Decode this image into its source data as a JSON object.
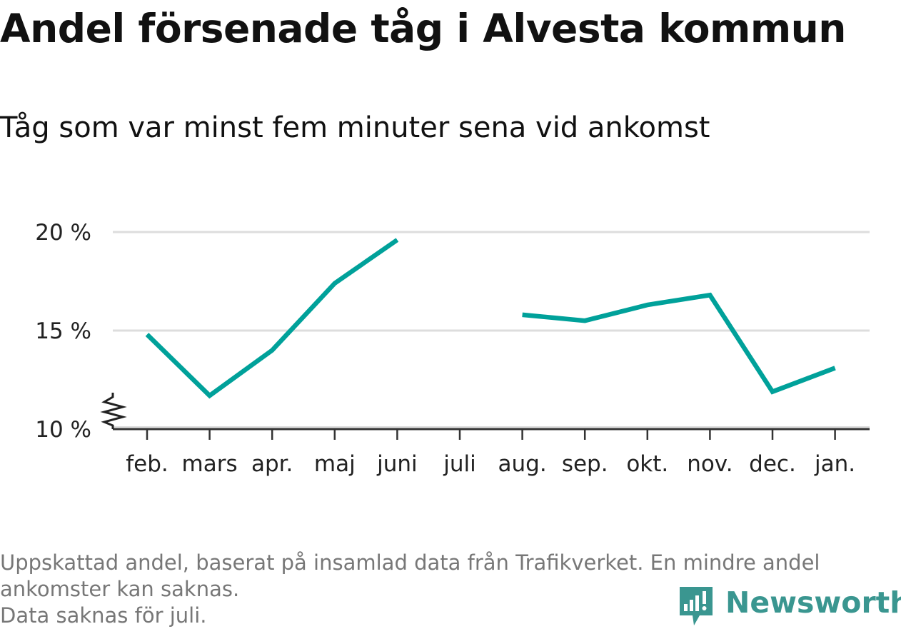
{
  "header": {
    "title": "Andel försenade tåg i Alvesta kommun",
    "subtitle": "Tåg som var minst fem minuter sena vid ankomst"
  },
  "chart_data": {
    "type": "line",
    "title": "Andel försenade tåg i Alvesta kommun",
    "subtitle": "Tåg som var minst fem minuter sena vid ankomst",
    "xlabel": "",
    "ylabel": "",
    "categories": [
      "feb.",
      "mars",
      "apr.",
      "maj",
      "juni",
      "juli",
      "aug.",
      "sep.",
      "okt.",
      "nov.",
      "dec.",
      "jan."
    ],
    "series": [
      {
        "values": [
          14.8,
          11.7,
          14.0,
          17.4,
          19.6,
          null,
          15.8,
          15.5,
          16.3,
          16.8,
          11.9,
          13.1
        ]
      }
    ],
    "ylim": [
      10,
      20
    ],
    "yticks": [
      10,
      15,
      20
    ],
    "ytick_labels": [
      "10 %",
      "15 %",
      "20 %"
    ],
    "y_axis_break": true,
    "grid": "horizontal",
    "legend": "none",
    "colors": {
      "line": "#00a19a",
      "grid": "#dddddd",
      "axis": "#333333"
    }
  },
  "footnote": {
    "line1": "Uppskattad andel, baserat på insamlad data från Trafikverket. En mindre andel",
    "line2": "ankomster kan saknas.",
    "line3": "Data saknas för juli."
  },
  "brand": {
    "name": "Newsworthy",
    "logo_icon": "chart-bubble-icon",
    "color": "#3a9690"
  }
}
